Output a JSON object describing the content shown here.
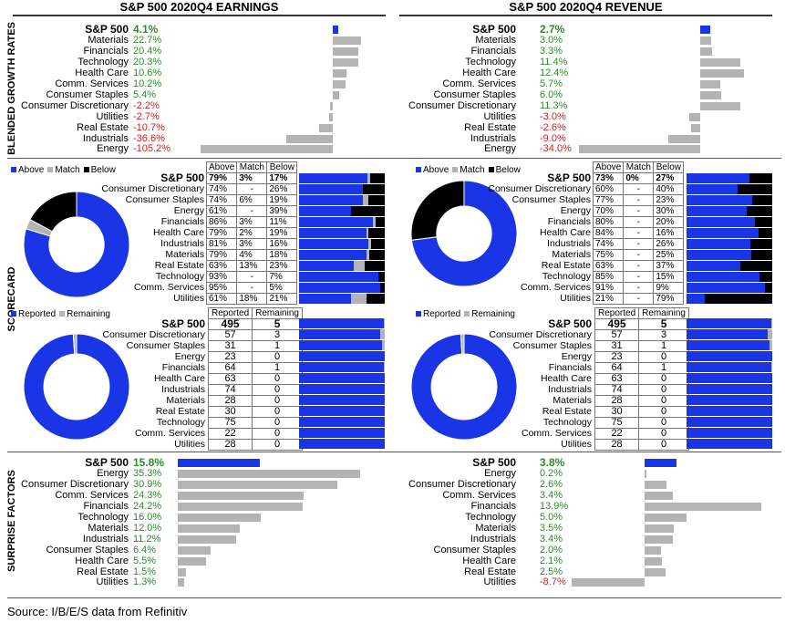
{
  "earnings_title": "S&P 500 2020Q4 EARNINGS",
  "revenue_title": "S&P 500 2020Q4 REVENUE",
  "side_labels": {
    "growth": "BLENDED GROWTH RATES",
    "scorecard": "SCORECARD",
    "surprise": "SURPRISE FACTORS"
  },
  "source": "Source: I/B/E/S data from Refinitiv",
  "colors": {
    "blue": "#1a35e6",
    "gray": "#b4b4b4",
    "black": "#000000",
    "positive": "#2e8b2e",
    "negative": "#cc2222"
  },
  "scorecard_legend": [
    "Above",
    "Match",
    "Below"
  ],
  "reported_legend": [
    "Reported",
    "Remaining"
  ],
  "scorecard_headers": [
    "Above",
    "Match",
    "Below"
  ],
  "reported_headers": [
    "Reported",
    "Remaining"
  ],
  "chart_data": [
    {
      "type": "bar",
      "title": "S&P 500 2020Q4 EARNINGS - BLENDED GROWTH RATES",
      "categories": [
        "S&P 500",
        "Materials",
        "Financials",
        "Technology",
        "Health Care",
        "Comm. Services",
        "Consumer Staples",
        "Consumer Discretionary",
        "Utilities",
        "Real Estate",
        "Industrials",
        "Energy"
      ],
      "values": [
        4.1,
        22.7,
        20.4,
        20.3,
        10.6,
        10.2,
        5.4,
        -2.2,
        -2.7,
        -10.7,
        -36.6,
        -105.2
      ],
      "labels": [
        "4.1%",
        "22.7%",
        "20.4%",
        "20.3%",
        "10.6%",
        "10.2%",
        "5.4%",
        "-2.2%",
        "-2.7%",
        "-10.7%",
        "-36.6%",
        "-105.2%"
      ]
    },
    {
      "type": "bar",
      "title": "S&P 500 2020Q4 REVENUE - BLENDED GROWTH RATES",
      "categories": [
        "S&P 500",
        "Materials",
        "Financials",
        "Technology",
        "Health Care",
        "Comm. Services",
        "Consumer Staples",
        "Consumer Discretionary",
        "Utilities",
        "Real Estate",
        "Industrials",
        "Energy"
      ],
      "values": [
        2.7,
        3.0,
        3.3,
        11.4,
        12.4,
        5.7,
        6.0,
        11.3,
        -3.0,
        -2.6,
        -9.0,
        -34.0
      ],
      "labels": [
        "2.7%",
        "3.0%",
        "3.3%",
        "11.4%",
        "12.4%",
        "5.7%",
        "6.0%",
        "11.3%",
        "-3.0%",
        "-2.6%",
        "-9.0%",
        "-34.0%"
      ]
    },
    {
      "type": "table",
      "title": "S&P 500 2020Q4 EARNINGS - SCORECARD",
      "categories": [
        "S&P 500",
        "Consumer Discretionary",
        "Consumer Staples",
        "Energy",
        "Financials",
        "Health Care",
        "Industrials",
        "Materials",
        "Real Estate",
        "Technology",
        "Comm. Services",
        "Utilities"
      ],
      "above": [
        "79%",
        "74%",
        "74%",
        "61%",
        "86%",
        "79%",
        "81%",
        "79%",
        "63%",
        "93%",
        "95%",
        "61%"
      ],
      "match": [
        "3%",
        "-",
        "6%",
        "-",
        "3%",
        "2%",
        "3%",
        "4%",
        "13%",
        "-",
        "-",
        "18%"
      ],
      "below": [
        "17%",
        "26%",
        "19%",
        "39%",
        "11%",
        "19%",
        "16%",
        "18%",
        "23%",
        "7%",
        "5%",
        "21%"
      ],
      "above_values": [
        79,
        74,
        74,
        61,
        86,
        79,
        81,
        79,
        63,
        93,
        95,
        61
      ],
      "match_values": [
        3,
        0,
        6,
        0,
        3,
        2,
        3,
        4,
        13,
        0,
        0,
        18
      ],
      "below_values": [
        17,
        26,
        19,
        39,
        11,
        19,
        16,
        18,
        23,
        7,
        5,
        21
      ]
    },
    {
      "type": "table",
      "title": "S&P 500 2020Q4 REVENUE - SCORECARD",
      "categories": [
        "S&P 500",
        "Consumer Discretionary",
        "Consumer Staples",
        "Energy",
        "Financials",
        "Health Care",
        "Industrials",
        "Materials",
        "Real Estate",
        "Technology",
        "Comm. Services",
        "Utilities"
      ],
      "above": [
        "73%",
        "60%",
        "77%",
        "70%",
        "80%",
        "84%",
        "74%",
        "75%",
        "63%",
        "85%",
        "91%",
        "21%"
      ],
      "match": [
        "0%",
        "-",
        "-",
        "-",
        "-",
        "-",
        "-",
        "-",
        "-",
        "-",
        "-",
        "-"
      ],
      "below": [
        "27%",
        "40%",
        "23%",
        "30%",
        "20%",
        "16%",
        "26%",
        "25%",
        "37%",
        "15%",
        "9%",
        "79%"
      ],
      "above_values": [
        73,
        60,
        77,
        70,
        80,
        84,
        74,
        75,
        63,
        85,
        91,
        21
      ],
      "match_values": [
        0,
        0,
        0,
        0,
        0,
        0,
        0,
        0,
        0,
        0,
        0,
        0
      ],
      "below_values": [
        27,
        40,
        23,
        30,
        20,
        16,
        26,
        25,
        37,
        15,
        9,
        79
      ]
    },
    {
      "type": "table",
      "title": "S&P 500 2020Q4 EARNINGS - REPORTED",
      "categories": [
        "S&P 500",
        "Consumer Discretionary",
        "Consumer Staples",
        "Energy",
        "Financials",
        "Health Care",
        "Industrials",
        "Materials",
        "Real Estate",
        "Technology",
        "Comm. Services",
        "Utilities"
      ],
      "reported": [
        495,
        57,
        31,
        23,
        64,
        63,
        74,
        28,
        30,
        75,
        22,
        28
      ],
      "remaining": [
        5,
        3,
        1,
        0,
        1,
        0,
        0,
        0,
        0,
        0,
        0,
        0
      ]
    },
    {
      "type": "table",
      "title": "S&P 500 2020Q4 REVENUE - REPORTED",
      "categories": [
        "S&P 500",
        "Consumer Discretionary",
        "Consumer Staples",
        "Energy",
        "Financials",
        "Health Care",
        "Industrials",
        "Materials",
        "Real Estate",
        "Technology",
        "Comm. Services",
        "Utilities"
      ],
      "reported": [
        495,
        57,
        31,
        23,
        64,
        63,
        74,
        28,
        30,
        75,
        22,
        28
      ],
      "remaining": [
        5,
        3,
        1,
        0,
        1,
        0,
        0,
        0,
        0,
        0,
        0,
        0
      ]
    },
    {
      "type": "bar",
      "title": "S&P 500 2020Q4 EARNINGS - SURPRISE FACTORS",
      "categories": [
        "S&P 500",
        "Energy",
        "Consumer Discretionary",
        "Comm. Services",
        "Financials",
        "Technology",
        "Materials",
        "Industrials",
        "Consumer Staples",
        "Health Care",
        "Real Estate",
        "Utilities"
      ],
      "values": [
        15.8,
        35.3,
        30.9,
        24.3,
        24.2,
        16.0,
        12.0,
        11.2,
        6.4,
        5.5,
        1.5,
        1.3
      ],
      "labels": [
        "15.8%",
        "35.3%",
        "30.9%",
        "24.3%",
        "24.2%",
        "16.0%",
        "12.0%",
        "11.2%",
        "6.4%",
        "5.5%",
        "1.5%",
        "1.3%"
      ]
    },
    {
      "type": "bar",
      "title": "S&P 500 2020Q4 REVENUE - SURPRISE FACTORS",
      "categories": [
        "S&P 500",
        "Energy",
        "Consumer Discretionary",
        "Comm. Services",
        "Financials",
        "Technology",
        "Materials",
        "Industrials",
        "Consumer Staples",
        "Health Care",
        "Real Estate",
        "Utilities"
      ],
      "values": [
        3.8,
        0.2,
        2.6,
        3.4,
        13.9,
        5.0,
        3.5,
        3.4,
        2.0,
        2.1,
        2.5,
        -8.7
      ],
      "labels": [
        "3.8%",
        "0.2%",
        "2.6%",
        "3.4%",
        "13.9%",
        "5.0%",
        "3.5%",
        "3.4%",
        "2.0%",
        "2.1%",
        "2.5%",
        "-8.7%"
      ]
    }
  ]
}
